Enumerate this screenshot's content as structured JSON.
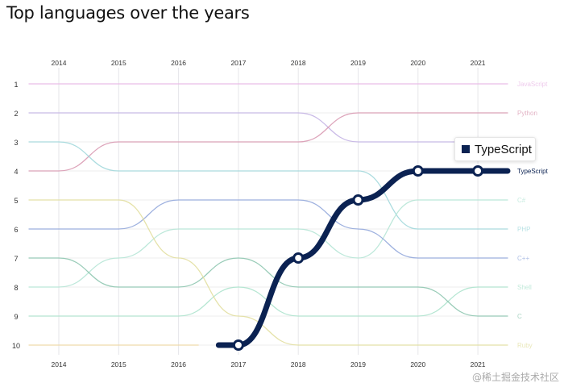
{
  "chart_data": {
    "type": "bump",
    "title": "Top languages over the years",
    "years": [
      2014,
      2015,
      2016,
      2017,
      2018,
      2019,
      2020,
      2021
    ],
    "rank_ticks": [
      1,
      2,
      3,
      4,
      5,
      6,
      7,
      8,
      9,
      10
    ],
    "grid": true,
    "highlighted": "TypeScript",
    "series": [
      {
        "name": "JavaScript",
        "color": "#e8b8e6",
        "ranks": [
          1,
          1,
          1,
          1,
          1,
          1,
          1,
          1
        ]
      },
      {
        "name": "",
        "color": "#c4b4e4",
        "ranks": [
          2,
          2,
          2,
          2,
          2,
          3,
          3,
          3
        ]
      },
      {
        "name": "Python",
        "color": "#d99ab2",
        "ranks": [
          4,
          3,
          3,
          3,
          3,
          2,
          2,
          2
        ]
      },
      {
        "name": "PHP",
        "color": "#a2d8dc",
        "ranks": [
          3,
          4,
          4,
          4,
          4,
          4,
          6,
          6
        ]
      },
      {
        "name": "C#",
        "color": "#b6e6d6",
        "ranks": [
          8,
          7,
          6,
          6,
          6,
          7,
          5,
          5
        ]
      },
      {
        "name": "C++",
        "color": "#93a9dc",
        "ranks": [
          6,
          6,
          5,
          5,
          5,
          6,
          7,
          7
        ]
      },
      {
        "name": "Shell",
        "color": "#ade3cd",
        "ranks": [
          9,
          9,
          9,
          8,
          9,
          9,
          9,
          8
        ]
      },
      {
        "name": "C",
        "color": "#8ec6b0",
        "ranks": [
          7,
          8,
          8,
          7,
          8,
          8,
          8,
          9
        ]
      },
      {
        "name": "Ruby",
        "color": "#e2dfa0",
        "ranks": [
          5,
          5,
          7,
          9,
          10,
          10,
          10,
          10
        ]
      },
      {
        "name": "",
        "color": "#f0d8a4",
        "ranks": [
          10,
          10,
          10,
          null,
          null,
          null,
          null,
          null
        ]
      },
      {
        "name": "TypeScript",
        "color": "#0b2252",
        "ranks": [
          null,
          null,
          null,
          10,
          7,
          5,
          4,
          4
        ]
      }
    ]
  },
  "tooltip": {
    "label": "TypeScript",
    "color": "#0b2252"
  },
  "watermark": "@稀土掘金技术社区"
}
